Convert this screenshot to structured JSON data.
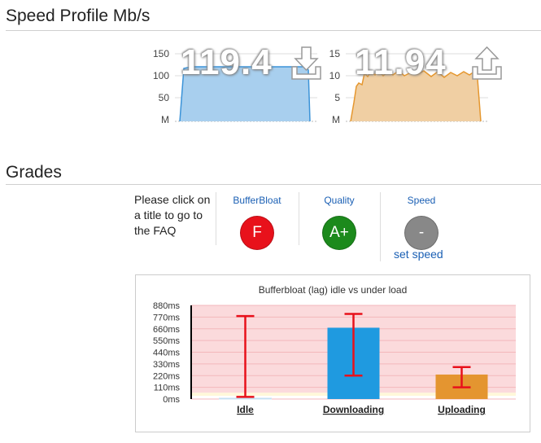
{
  "speed_profile": {
    "title": "Speed Profile Mb/s",
    "download": {
      "value": "119.4",
      "icon": "download-arrow-icon",
      "axis_labels": [
        "150",
        "100",
        "50",
        "M"
      ],
      "color": "#5aa7e0",
      "fill": "#a8cfee"
    },
    "upload": {
      "value": "11.94",
      "icon": "upload-arrow-icon",
      "axis_labels": [
        "15",
        "10",
        "5",
        "M"
      ],
      "color": "#e5972f",
      "fill": "#f0cfa3"
    }
  },
  "grades": {
    "title": "Grades",
    "faq_text": "Please click on a title to go to the FAQ",
    "items": [
      {
        "title": "BufferBloat",
        "grade": "F",
        "color": "#e8111b"
      },
      {
        "title": "Quality",
        "grade": "A+",
        "color": "#1c8a1c"
      },
      {
        "title": "Speed",
        "grade": "-",
        "color": "#888888"
      }
    ],
    "set_speed_label": "set speed"
  },
  "bufferbloat_chart": {
    "title": "Bufferbloat (lag) idle vs under load",
    "y_ticks": [
      "880ms",
      "770ms",
      "660ms",
      "550ms",
      "440ms",
      "330ms",
      "220ms",
      "110ms",
      "0ms"
    ],
    "categories": [
      "Idle",
      "Downloading",
      "Uploading"
    ]
  },
  "chart_data": {
    "type": "bar",
    "title": "Bufferbloat (lag) idle vs under load",
    "categories": [
      "Idle",
      "Downloading",
      "Uploading"
    ],
    "values": [
      8,
      670,
      230
    ],
    "error_low": [
      20,
      220,
      110
    ],
    "error_high": [
      780,
      800,
      300
    ],
    "ylim": [
      0,
      880
    ],
    "y_unit": "ms",
    "colors": [
      "#1f9ae0",
      "#1f9ae0",
      "#e49530"
    ],
    "background_bands": [
      {
        "from": 0,
        "to": 30,
        "color": "#ffffff"
      },
      {
        "from": 30,
        "to": 60,
        "color": "#fff8d9"
      },
      {
        "from": 60,
        "to": 880,
        "color": "#fbdadc"
      }
    ]
  }
}
